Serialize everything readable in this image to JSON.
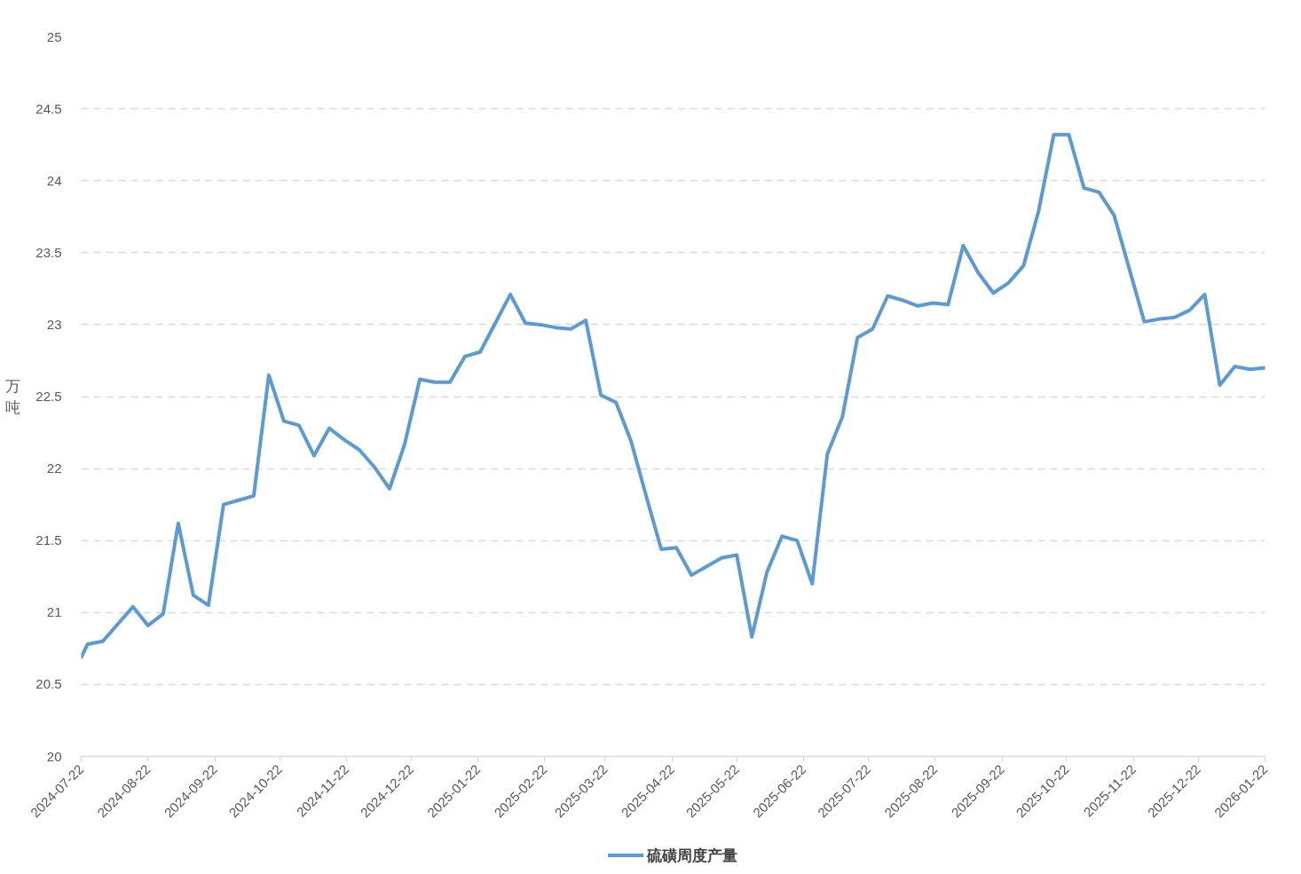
{
  "chart_data": {
    "type": "line",
    "ylabel": "万吨",
    "x": [
      "2024-07-22",
      "2024-07-25",
      "2024-08-01",
      "2024-08-08",
      "2024-08-15",
      "2024-08-22",
      "2024-08-29",
      "2024-09-05",
      "2024-09-12",
      "2024-09-19",
      "2024-09-26",
      "2024-10-03",
      "2024-10-10",
      "2024-10-17",
      "2024-10-24",
      "2024-10-31",
      "2024-11-07",
      "2024-11-14",
      "2024-11-21",
      "2024-11-28",
      "2024-12-05",
      "2024-12-12",
      "2024-12-19",
      "2024-12-26",
      "2025-01-02",
      "2025-01-09",
      "2025-01-16",
      "2025-01-23",
      "2025-01-30",
      "2025-02-06",
      "2025-02-13",
      "2025-02-20",
      "2025-02-27",
      "2025-03-06",
      "2025-03-13",
      "2025-03-20",
      "2025-03-27",
      "2025-04-03",
      "2025-04-10",
      "2025-04-17",
      "2025-04-24",
      "2025-05-01",
      "2025-05-08",
      "2025-05-15",
      "2025-05-22",
      "2025-05-29",
      "2025-06-05",
      "2025-06-12",
      "2025-06-19",
      "2025-06-26",
      "2025-07-03",
      "2025-07-10",
      "2025-07-17",
      "2025-07-24",
      "2025-07-31",
      "2025-08-07",
      "2025-08-14",
      "2025-08-21",
      "2025-08-28",
      "2025-09-04",
      "2025-09-11",
      "2025-09-18",
      "2025-09-25",
      "2025-10-02",
      "2025-10-09",
      "2025-10-16",
      "2025-10-23",
      "2025-10-30",
      "2025-11-06",
      "2025-11-13",
      "2025-11-20",
      "2025-11-27",
      "2025-12-04",
      "2025-12-11",
      "2025-12-18",
      "2025-12-25",
      "2026-01-01",
      "2026-01-08",
      "2026-01-15",
      "2026-01-22"
    ],
    "series": [
      {
        "name": "硫磺周度产量",
        "color": "#5b9bd5",
        "values": [
          20.69,
          20.78,
          20.8,
          20.92,
          21.04,
          20.91,
          20.99,
          21.62,
          21.12,
          21.05,
          21.75,
          21.78,
          21.81,
          22.65,
          22.33,
          22.3,
          22.09,
          22.28,
          22.2,
          22.13,
          22.01,
          21.86,
          22.17,
          22.62,
          22.6,
          22.6,
          22.78,
          22.81,
          23.01,
          23.21,
          23.01,
          23.0,
          22.98,
          22.97,
          23.03,
          22.51,
          22.46,
          22.19,
          21.81,
          21.44,
          21.45,
          21.26,
          21.32,
          21.38,
          21.4,
          20.83,
          21.28,
          21.53,
          21.5,
          21.2,
          22.1,
          22.36,
          22.91,
          22.97,
          23.2,
          23.17,
          23.13,
          23.15,
          23.14,
          23.55,
          23.36,
          23.22,
          23.29,
          23.41,
          23.79,
          24.32,
          24.32,
          23.95,
          23.92,
          23.76,
          23.39,
          23.02,
          23.04,
          23.05,
          23.1,
          23.21,
          22.58,
          22.71,
          22.69,
          22.7
        ]
      }
    ],
    "xlim": [
      "2024-07-22",
      "2026-01-22"
    ],
    "xticks": [
      "2024-07-22",
      "2024-08-22",
      "2024-09-22",
      "2024-10-22",
      "2024-11-22",
      "2024-12-22",
      "2025-01-22",
      "2025-02-22",
      "2025-03-22",
      "2025-04-22",
      "2025-05-22",
      "2025-06-22",
      "2025-07-22",
      "2025-08-22",
      "2025-09-22",
      "2025-10-22",
      "2025-11-22",
      "2025-12-22",
      "2026-01-22"
    ],
    "ylim": [
      20,
      25
    ],
    "yticks": [
      20,
      20.5,
      21,
      21.5,
      22,
      22.5,
      23,
      23.5,
      24,
      24.5,
      25
    ],
    "grid": "y",
    "legend": "bottom"
  }
}
